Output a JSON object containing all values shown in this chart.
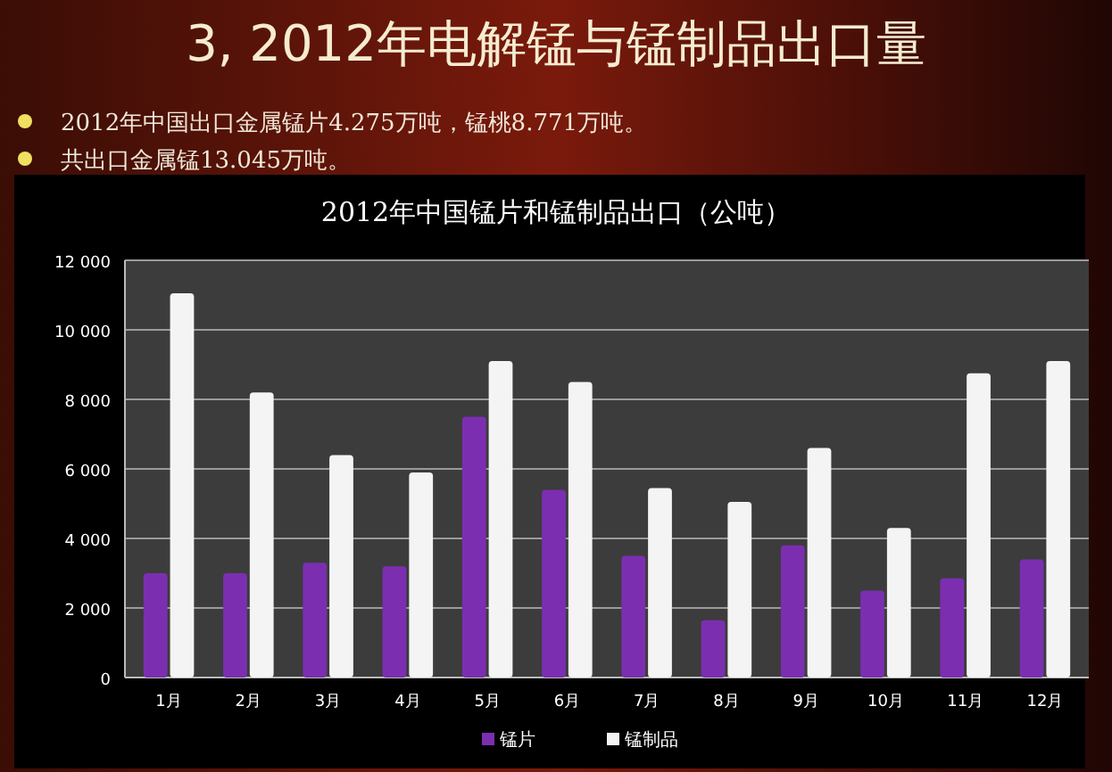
{
  "chart_data": {
    "type": "bar",
    "title": "3,    2012年电解锰与锰制品出口量",
    "annotations": [
      "2012年中国出口金属锰片4.275万吨，锰桃8.771万吨。",
      "共出口金属锰13.045万吨。"
    ],
    "subtitle": "2012年中国锰片和锰制品出口（公吨）",
    "categories": [
      "1月",
      "2月",
      "3月",
      "4月",
      "5月",
      "6月",
      "7月",
      "8月",
      "9月",
      "10月",
      "11月",
      "12月"
    ],
    "series": [
      {
        "name": "锰片",
        "color": "#7b2fb0",
        "values": [
          3000,
          3000,
          3300,
          3200,
          7500,
          5400,
          3500,
          1650,
          3800,
          2500,
          2850,
          3400
        ]
      },
      {
        "name": "锰制品",
        "color": "#f4f4f4",
        "values": [
          11050,
          8200,
          6400,
          5900,
          9100,
          8500,
          5450,
          5050,
          6600,
          4300,
          8750,
          9100
        ]
      }
    ],
    "ylim": [
      0,
      12000
    ],
    "yticks": [
      {
        "value": 0,
        "label": "0"
      },
      {
        "value": 2000,
        "label": "2 000"
      },
      {
        "value": 4000,
        "label": "4 000"
      },
      {
        "value": 6000,
        "label": "6 000"
      },
      {
        "value": 8000,
        "label": "8 000"
      },
      {
        "value": 10000,
        "label": "10 000"
      },
      {
        "value": 12000,
        "label": "12 000"
      }
    ],
    "grid": "y",
    "legend": "bottom"
  }
}
